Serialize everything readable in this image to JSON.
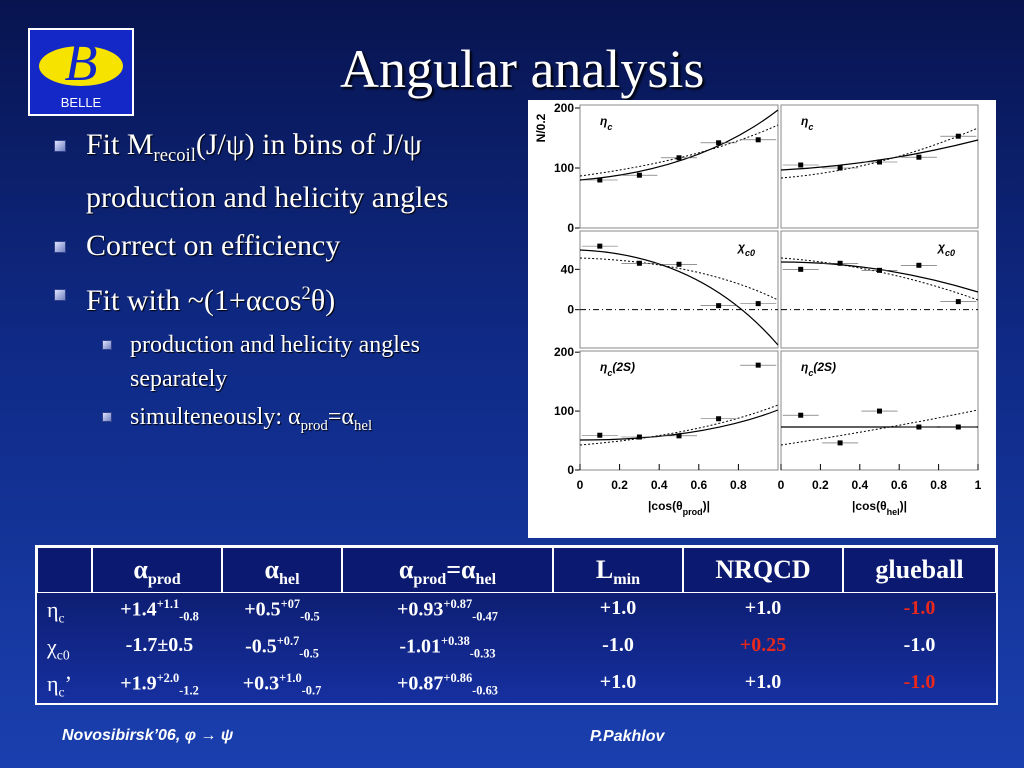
{
  "logo": {
    "text": "BELLE"
  },
  "title": "Angular analysis",
  "bullets": [
    {
      "level": 1,
      "parts": [
        {
          "text": "Fit M"
        },
        {
          "text": "recoil",
          "pos": "sub"
        },
        {
          "text": "(J/ψ) in bins of J/ψ production and helicity angles"
        }
      ]
    },
    {
      "level": 1,
      "parts": [
        {
          "text": "Correct on efficiency"
        }
      ]
    },
    {
      "level": 1,
      "parts": [
        {
          "text": "Fit with ~(1+αcos"
        },
        {
          "text": "2",
          "pos": "sup"
        },
        {
          "text": "θ)"
        }
      ]
    },
    {
      "level": 2,
      "parts": [
        {
          "text": "production and helicity angles separately"
        }
      ]
    },
    {
      "level": 2,
      "parts": [
        {
          "text": "simulteneously: α"
        },
        {
          "text": "prod",
          "pos": "sub"
        },
        {
          "text": "=α"
        },
        {
          "text": "hel",
          "pos": "sub"
        }
      ]
    }
  ],
  "figure": {
    "y_label": "N/0.2",
    "x_labels": [
      [
        {
          "text": "|cos(θ"
        },
        {
          "text": "prod",
          "pos": "sub"
        },
        {
          "text": ")|"
        }
      ],
      [
        {
          "text": "|cos(θ"
        },
        {
          "text": "hel",
          "pos": "sub"
        },
        {
          "text": ")|"
        }
      ]
    ],
    "xlim": [
      0,
      1
    ],
    "xticks": [
      [
        0,
        0.2,
        0.4,
        0.6,
        0.8
      ],
      [
        0,
        0.2,
        0.4,
        0.6,
        0.8,
        1
      ]
    ],
    "rows": [
      {
        "ylim": [
          0,
          205
        ],
        "yticks": [
          0,
          100,
          200
        ],
        "panels": [
          {
            "label": [
              {
                "text": "η"
              },
              {
                "text": "c",
                "pos": "sub"
              }
            ],
            "x": [
              0.1,
              0.3,
              0.5,
              0.7,
              0.9
            ],
            "y": [
              80,
              88,
              117,
              142,
              147
            ]
          },
          {
            "label": [
              {
                "text": "η"
              },
              {
                "text": "c",
                "pos": "sub"
              }
            ],
            "x": [
              0.1,
              0.3,
              0.5,
              0.7,
              0.9
            ],
            "y": [
              105,
              100,
              110,
              118,
              153
            ]
          }
        ]
      },
      {
        "ylim": [
          -38,
          78
        ],
        "yticks": [
          0,
          40
        ],
        "panels": [
          {
            "label": [
              {
                "text": "χ"
              },
              {
                "text": "c0",
                "pos": "sub"
              }
            ],
            "x": [
              0.1,
              0.3,
              0.5,
              0.7,
              0.9
            ],
            "y": [
              63,
              46,
              45,
              4,
              6
            ]
          },
          {
            "label": [
              {
                "text": "χ"
              },
              {
                "text": "c0",
                "pos": "sub"
              }
            ],
            "x": [
              0.1,
              0.3,
              0.5,
              0.7,
              0.9
            ],
            "y": [
              40,
              46,
              39,
              44,
              8
            ]
          }
        ]
      },
      {
        "ylim": [
          0,
          202
        ],
        "yticks": [
          0,
          100,
          200
        ],
        "panels": [
          {
            "label": [
              {
                "text": "η"
              },
              {
                "text": "c",
                "pos": "sub"
              },
              {
                "text": "(2S)"
              }
            ],
            "x": [
              0.1,
              0.3,
              0.5,
              0.7,
              0.9
            ],
            "y": [
              59,
              56,
              58,
              87,
              178
            ]
          },
          {
            "label": [
              {
                "text": "η"
              },
              {
                "text": "c",
                "pos": "sub"
              },
              {
                "text": "(2S)"
              }
            ],
            "x": [
              0.1,
              0.3,
              0.5,
              0.7,
              0.9
            ],
            "y": [
              93,
              46,
              100,
              73,
              73
            ]
          }
        ]
      }
    ]
  },
  "table": {
    "header": [
      null,
      [
        {
          "text": "α"
        },
        {
          "text": "prod",
          "pos": "sub"
        }
      ],
      [
        {
          "text": "α"
        },
        {
          "text": "hel",
          "pos": "sub"
        }
      ],
      [
        {
          "text": "α"
        },
        {
          "text": "prod",
          "pos": "sub"
        },
        {
          "text": "=α"
        },
        {
          "text": "hel",
          "pos": "sub"
        }
      ],
      [
        {
          "text": "L"
        },
        {
          "text": "min",
          "pos": "sub"
        }
      ],
      [
        {
          "text": "NRQCD"
        }
      ],
      [
        {
          "text": "glueball"
        }
      ]
    ],
    "rows": [
      [
        [
          {
            "text": "η"
          },
          {
            "text": "c",
            "pos": "sub"
          }
        ],
        [
          {
            "text": "+1.4"
          },
          {
            "text": "+1.1",
            "pos": "sup"
          },
          {
            "text": "-0.8",
            "pos": "sub"
          }
        ],
        [
          {
            "text": "+0.5"
          },
          {
            "text": "+07",
            "pos": "sup"
          },
          {
            "text": "-0.5",
            "pos": "sub"
          }
        ],
        [
          {
            "text": "+0.93"
          },
          {
            "text": "+0.87",
            "pos": "sup"
          },
          {
            "text": "-0.47",
            "pos": "sub"
          }
        ],
        [
          {
            "text": "+1.0"
          }
        ],
        [
          {
            "text": "+1.0"
          }
        ],
        [
          {
            "text": "-1.0",
            "color": "#e8281c"
          }
        ]
      ],
      [
        [
          {
            "text": "χ"
          },
          {
            "text": "c0",
            "pos": "sub"
          }
        ],
        [
          {
            "text": "-1.7±0.5"
          }
        ],
        [
          {
            "text": "-0.5"
          },
          {
            "text": "+0.7",
            "pos": "sup"
          },
          {
            "text": "-0.5",
            "pos": "sub"
          }
        ],
        [
          {
            "text": "-1.01"
          },
          {
            "text": "+0.38",
            "pos": "sup"
          },
          {
            "text": "-0.33",
            "pos": "sub"
          }
        ],
        [
          {
            "text": "-1.0"
          }
        ],
        [
          {
            "text": "+0.25",
            "color": "#e8281c"
          }
        ],
        [
          {
            "text": "-1.0"
          }
        ]
      ],
      [
        [
          {
            "text": "η"
          },
          {
            "text": "c",
            "pos": "sub"
          },
          {
            "text": "’"
          }
        ],
        [
          {
            "text": "+1.9"
          },
          {
            "text": "+2.0",
            "pos": "sup"
          },
          {
            "text": "-1.2",
            "pos": "sub"
          }
        ],
        [
          {
            "text": "+0.3"
          },
          {
            "text": "+1.0",
            "pos": "sup"
          },
          {
            "text": "-0.7",
            "pos": "sub"
          }
        ],
        [
          {
            "text": "+0.87"
          },
          {
            "text": "+0.86",
            "pos": "sup"
          },
          {
            "text": "-0.63",
            "pos": "sub"
          }
        ],
        [
          {
            "text": "+1.0"
          }
        ],
        [
          {
            "text": "+1.0"
          }
        ],
        [
          {
            "text": "-1.0",
            "color": "#e8281c"
          }
        ]
      ]
    ]
  },
  "footer": {
    "left": "Novosibirsk’06,  φ → ψ",
    "right": "P.Pakhlov"
  }
}
